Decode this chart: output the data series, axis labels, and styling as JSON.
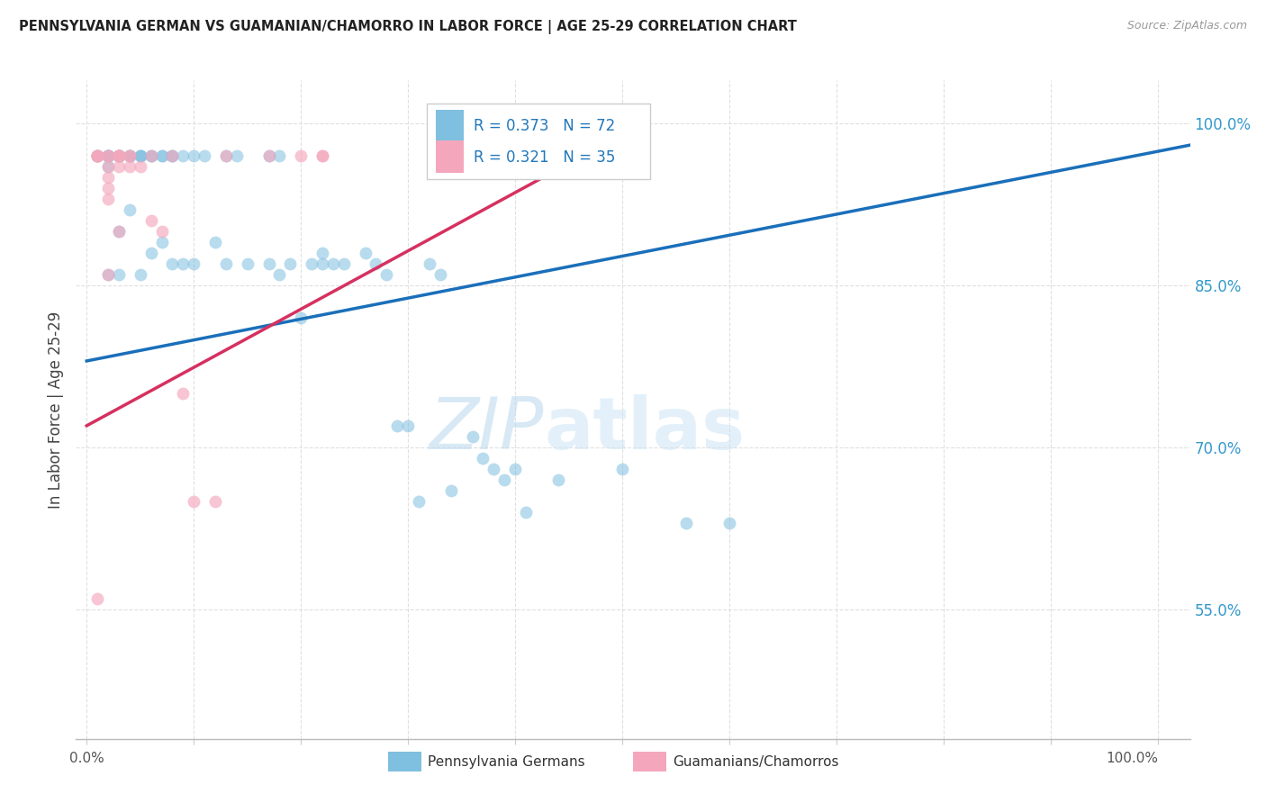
{
  "title": "PENNSYLVANIA GERMAN VS GUAMANIAN/CHAMORRO IN LABOR FORCE | AGE 25-29 CORRELATION CHART",
  "source": "Source: ZipAtlas.com",
  "ylabel": "In Labor Force | Age 25-29",
  "right_ytick_vals": [
    1.0,
    0.85,
    0.7,
    0.55
  ],
  "right_ytick_labels": [
    "100.0%",
    "85.0%",
    "70.0%",
    "55.0%"
  ],
  "xlim": [
    -0.01,
    1.03
  ],
  "ylim": [
    0.43,
    1.04
  ],
  "R_blue": 0.373,
  "N_blue": 72,
  "R_pink": 0.321,
  "N_pink": 35,
  "blue_scatter_color": "#7fbfdf",
  "pink_scatter_color": "#f4a7bc",
  "trendline_blue_color": "#1a6fba",
  "trendline_pink_color": "#d63060",
  "legend_label_blue": "Pennsylvania Germans",
  "legend_label_pink": "Guamanians/Chamorros",
  "watermark_zip": "ZIP",
  "watermark_atlas": "atlas",
  "grid_color": "#e0e0e0",
  "blue_scatter_x": [
    0.01,
    0.01,
    0.02,
    0.02,
    0.02,
    0.02,
    0.02,
    0.02,
    0.02,
    0.03,
    0.03,
    0.03,
    0.03,
    0.03,
    0.03,
    0.04,
    0.04,
    0.04,
    0.04,
    0.05,
    0.05,
    0.05,
    0.05,
    0.06,
    0.06,
    0.06,
    0.07,
    0.07,
    0.07,
    0.08,
    0.08,
    0.08,
    0.09,
    0.09,
    0.1,
    0.1,
    0.11,
    0.12,
    0.13,
    0.13,
    0.14,
    0.15,
    0.17,
    0.17,
    0.18,
    0.18,
    0.19,
    0.2,
    0.21,
    0.22,
    0.22,
    0.23,
    0.24,
    0.26,
    0.27,
    0.28,
    0.29,
    0.3,
    0.31,
    0.32,
    0.33,
    0.34,
    0.36,
    0.37,
    0.38,
    0.39,
    0.4,
    0.41,
    0.44,
    0.5,
    0.56,
    0.6
  ],
  "blue_scatter_y": [
    0.97,
    0.97,
    0.97,
    0.97,
    0.97,
    0.97,
    0.97,
    0.96,
    0.86,
    0.97,
    0.97,
    0.97,
    0.97,
    0.9,
    0.86,
    0.97,
    0.97,
    0.97,
    0.92,
    0.97,
    0.97,
    0.97,
    0.86,
    0.97,
    0.97,
    0.88,
    0.97,
    0.97,
    0.89,
    0.97,
    0.97,
    0.87,
    0.97,
    0.87,
    0.97,
    0.87,
    0.97,
    0.89,
    0.97,
    0.87,
    0.97,
    0.87,
    0.97,
    0.87,
    0.97,
    0.86,
    0.87,
    0.82,
    0.87,
    0.88,
    0.87,
    0.87,
    0.87,
    0.88,
    0.87,
    0.86,
    0.72,
    0.72,
    0.65,
    0.87,
    0.86,
    0.66,
    0.71,
    0.69,
    0.68,
    0.67,
    0.68,
    0.64,
    0.67,
    0.68,
    0.63,
    0.63
  ],
  "pink_scatter_x": [
    0.01,
    0.01,
    0.01,
    0.01,
    0.01,
    0.02,
    0.02,
    0.02,
    0.02,
    0.02,
    0.02,
    0.02,
    0.03,
    0.03,
    0.03,
    0.03,
    0.03,
    0.03,
    0.04,
    0.04,
    0.04,
    0.05,
    0.06,
    0.06,
    0.07,
    0.08,
    0.09,
    0.1,
    0.12,
    0.13,
    0.17,
    0.2,
    0.22,
    0.22,
    0.45
  ],
  "pink_scatter_y": [
    0.97,
    0.97,
    0.97,
    0.56,
    0.97,
    0.97,
    0.97,
    0.96,
    0.95,
    0.94,
    0.93,
    0.86,
    0.97,
    0.97,
    0.97,
    0.97,
    0.96,
    0.9,
    0.97,
    0.97,
    0.96,
    0.96,
    0.97,
    0.91,
    0.9,
    0.97,
    0.75,
    0.65,
    0.65,
    0.97,
    0.97,
    0.97,
    0.97,
    0.97,
    0.97
  ],
  "blue_trend_x0": 0.0,
  "blue_trend_x1": 1.03,
  "blue_trend_y0": 0.78,
  "blue_trend_y1": 0.98,
  "pink_trend_x0": 0.0,
  "pink_trend_x1": 0.5,
  "pink_trend_y0": 0.72,
  "pink_trend_y1": 0.99
}
